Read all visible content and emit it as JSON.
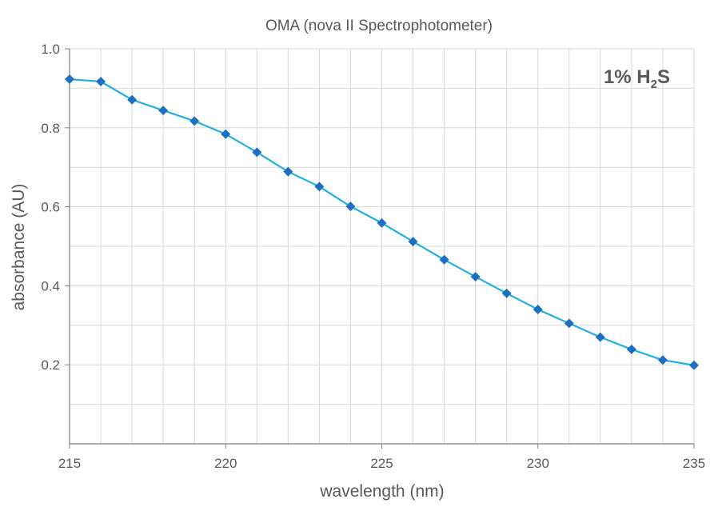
{
  "chart_data": {
    "type": "line",
    "title": "OMA (nova II Spectrophotometer)",
    "xlabel": "wavelength (nm)",
    "ylabel": "absorbance (AU)",
    "xlim": [
      215,
      235
    ],
    "ylim": [
      0,
      1.0
    ],
    "x_ticks": [
      215,
      220,
      225,
      230,
      235
    ],
    "x_tick_labels": [
      "215",
      "220",
      "225",
      "230",
      "235"
    ],
    "y_ticks": [
      0.2,
      0.4,
      0.6,
      0.8,
      1.0
    ],
    "y_tick_labels": [
      "0.2",
      "0.4",
      "0.6",
      "0.8",
      "1.0"
    ],
    "grid": true,
    "annotation": {
      "prefix": "1% H",
      "subscript": "2",
      "suffix": "S"
    },
    "series": [
      {
        "x": [
          215,
          216,
          217,
          218,
          219,
          220,
          221,
          222,
          223,
          224,
          225,
          226,
          227,
          228,
          229,
          230,
          231,
          232,
          233,
          234,
          235
        ],
        "y": [
          0.923,
          0.917,
          0.871,
          0.844,
          0.817,
          0.784,
          0.738,
          0.689,
          0.651,
          0.601,
          0.559,
          0.512,
          0.466,
          0.423,
          0.381,
          0.34,
          0.305,
          0.27,
          0.239,
          0.212,
          0.199
        ],
        "line_color": "#1fb0e6",
        "marker_color": "#1f6fc1",
        "marker": "diamond"
      }
    ]
  }
}
